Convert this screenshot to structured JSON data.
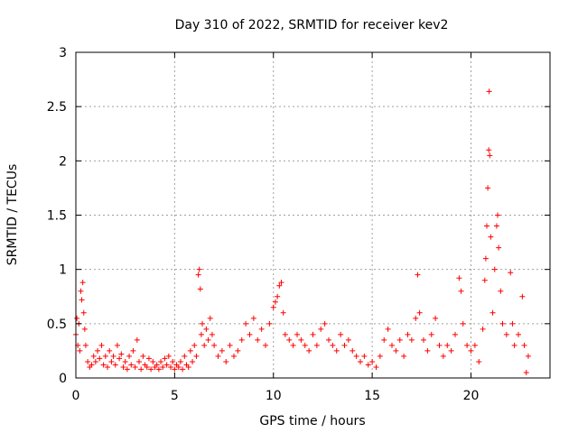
{
  "chart_data": {
    "type": "scatter",
    "title": "Day 310 of 2022, SRMTID for receiver kev2",
    "xlabel": "GPS time / hours",
    "ylabel": "SRMTID / TECUs",
    "xlim": [
      0,
      24
    ],
    "ylim": [
      0,
      3
    ],
    "xticks": [
      0,
      5,
      10,
      15,
      20
    ],
    "xtick_labels": [
      "0",
      "5",
      "10",
      "15",
      "20"
    ],
    "yticks": [
      0,
      0.5,
      1,
      1.5,
      2,
      2.5,
      3
    ],
    "ytick_labels": [
      "0",
      "0.5",
      "1",
      "1.5",
      "2",
      "2.5",
      "3"
    ],
    "grid": true,
    "marker": "+",
    "series": [
      {
        "name": "SRMTID",
        "color": "#ff0000",
        "points": [
          [
            0.0,
            0.4
          ],
          [
            0.05,
            0.55
          ],
          [
            0.1,
            0.3
          ],
          [
            0.15,
            0.5
          ],
          [
            0.2,
            0.25
          ],
          [
            0.25,
            0.8
          ],
          [
            0.3,
            0.72
          ],
          [
            0.35,
            0.88
          ],
          [
            0.4,
            0.6
          ],
          [
            0.45,
            0.45
          ],
          [
            0.5,
            0.3
          ],
          [
            0.6,
            0.15
          ],
          [
            0.7,
            0.1
          ],
          [
            0.8,
            0.12
          ],
          [
            0.9,
            0.2
          ],
          [
            1.0,
            0.15
          ],
          [
            1.1,
            0.25
          ],
          [
            1.2,
            0.18
          ],
          [
            1.3,
            0.3
          ],
          [
            1.4,
            0.12
          ],
          [
            1.5,
            0.2
          ],
          [
            1.6,
            0.1
          ],
          [
            1.7,
            0.25
          ],
          [
            1.8,
            0.15
          ],
          [
            1.9,
            0.2
          ],
          [
            2.0,
            0.12
          ],
          [
            2.1,
            0.3
          ],
          [
            2.2,
            0.18
          ],
          [
            2.3,
            0.22
          ],
          [
            2.4,
            0.1
          ],
          [
            2.5,
            0.15
          ],
          [
            2.6,
            0.08
          ],
          [
            2.7,
            0.2
          ],
          [
            2.8,
            0.12
          ],
          [
            2.9,
            0.25
          ],
          [
            3.0,
            0.1
          ],
          [
            3.1,
            0.35
          ],
          [
            3.2,
            0.15
          ],
          [
            3.3,
            0.08
          ],
          [
            3.4,
            0.2
          ],
          [
            3.5,
            0.12
          ],
          [
            3.6,
            0.1
          ],
          [
            3.7,
            0.18
          ],
          [
            3.8,
            0.08
          ],
          [
            3.9,
            0.15
          ],
          [
            4.0,
            0.1
          ],
          [
            4.1,
            0.12
          ],
          [
            4.2,
            0.08
          ],
          [
            4.3,
            0.15
          ],
          [
            4.4,
            0.1
          ],
          [
            4.5,
            0.18
          ],
          [
            4.6,
            0.12
          ],
          [
            4.7,
            0.2
          ],
          [
            4.8,
            0.1
          ],
          [
            4.9,
            0.15
          ],
          [
            5.0,
            0.08
          ],
          [
            5.1,
            0.12
          ],
          [
            5.2,
            0.1
          ],
          [
            5.3,
            0.15
          ],
          [
            5.4,
            0.08
          ],
          [
            5.5,
            0.2
          ],
          [
            5.6,
            0.12
          ],
          [
            5.7,
            0.1
          ],
          [
            5.8,
            0.25
          ],
          [
            5.9,
            0.15
          ],
          [
            6.0,
            0.3
          ],
          [
            6.1,
            0.2
          ],
          [
            6.2,
            0.95
          ],
          [
            6.25,
            1.0
          ],
          [
            6.3,
            0.82
          ],
          [
            6.35,
            0.4
          ],
          [
            6.4,
            0.5
          ],
          [
            6.5,
            0.3
          ],
          [
            6.6,
            0.45
          ],
          [
            6.7,
            0.35
          ],
          [
            6.8,
            0.55
          ],
          [
            6.9,
            0.4
          ],
          [
            7.0,
            0.3
          ],
          [
            7.2,
            0.2
          ],
          [
            7.4,
            0.25
          ],
          [
            7.6,
            0.15
          ],
          [
            7.8,
            0.3
          ],
          [
            8.0,
            0.2
          ],
          [
            8.2,
            0.25
          ],
          [
            8.4,
            0.35
          ],
          [
            8.6,
            0.5
          ],
          [
            8.8,
            0.4
          ],
          [
            9.0,
            0.55
          ],
          [
            9.2,
            0.35
          ],
          [
            9.4,
            0.45
          ],
          [
            9.6,
            0.3
          ],
          [
            9.8,
            0.5
          ],
          [
            10.0,
            0.65
          ],
          [
            10.1,
            0.7
          ],
          [
            10.2,
            0.75
          ],
          [
            10.3,
            0.85
          ],
          [
            10.4,
            0.88
          ],
          [
            10.5,
            0.6
          ],
          [
            10.6,
            0.4
          ],
          [
            10.8,
            0.35
          ],
          [
            11.0,
            0.3
          ],
          [
            11.2,
            0.4
          ],
          [
            11.4,
            0.35
          ],
          [
            11.6,
            0.3
          ],
          [
            11.8,
            0.25
          ],
          [
            12.0,
            0.4
          ],
          [
            12.2,
            0.3
          ],
          [
            12.4,
            0.45
          ],
          [
            12.6,
            0.5
          ],
          [
            12.8,
            0.35
          ],
          [
            13.0,
            0.3
          ],
          [
            13.2,
            0.25
          ],
          [
            13.4,
            0.4
          ],
          [
            13.6,
            0.3
          ],
          [
            13.8,
            0.35
          ],
          [
            14.0,
            0.25
          ],
          [
            14.2,
            0.2
          ],
          [
            14.4,
            0.15
          ],
          [
            14.6,
            0.2
          ],
          [
            14.8,
            0.12
          ],
          [
            15.0,
            0.15
          ],
          [
            15.2,
            0.1
          ],
          [
            15.4,
            0.2
          ],
          [
            15.6,
            0.35
          ],
          [
            15.8,
            0.45
          ],
          [
            16.0,
            0.3
          ],
          [
            16.2,
            0.25
          ],
          [
            16.4,
            0.35
          ],
          [
            16.6,
            0.2
          ],
          [
            16.8,
            0.4
          ],
          [
            17.0,
            0.35
          ],
          [
            17.2,
            0.55
          ],
          [
            17.3,
            0.95
          ],
          [
            17.4,
            0.6
          ],
          [
            17.6,
            0.35
          ],
          [
            17.8,
            0.25
          ],
          [
            18.0,
            0.4
          ],
          [
            18.2,
            0.55
          ],
          [
            18.4,
            0.3
          ],
          [
            18.6,
            0.2
          ],
          [
            18.8,
            0.3
          ],
          [
            19.0,
            0.25
          ],
          [
            19.2,
            0.4
          ],
          [
            19.4,
            0.92
          ],
          [
            19.5,
            0.8
          ],
          [
            19.6,
            0.5
          ],
          [
            19.8,
            0.3
          ],
          [
            20.0,
            0.25
          ],
          [
            20.2,
            0.3
          ],
          [
            20.4,
            0.15
          ],
          [
            20.6,
            0.45
          ],
          [
            20.7,
            0.9
          ],
          [
            20.75,
            1.1
          ],
          [
            20.8,
            1.4
          ],
          [
            20.85,
            1.75
          ],
          [
            20.9,
            2.1
          ],
          [
            20.92,
            2.64
          ],
          [
            20.95,
            2.05
          ],
          [
            21.0,
            1.3
          ],
          [
            21.1,
            0.6
          ],
          [
            21.2,
            1.0
          ],
          [
            21.3,
            1.4
          ],
          [
            21.35,
            1.5
          ],
          [
            21.4,
            1.2
          ],
          [
            21.5,
            0.8
          ],
          [
            21.6,
            0.5
          ],
          [
            21.8,
            0.4
          ],
          [
            22.0,
            0.97
          ],
          [
            22.1,
            0.5
          ],
          [
            22.2,
            0.3
          ],
          [
            22.4,
            0.4
          ],
          [
            22.6,
            0.75
          ],
          [
            22.7,
            0.3
          ],
          [
            22.8,
            0.05
          ],
          [
            22.9,
            0.2
          ]
        ]
      }
    ]
  }
}
